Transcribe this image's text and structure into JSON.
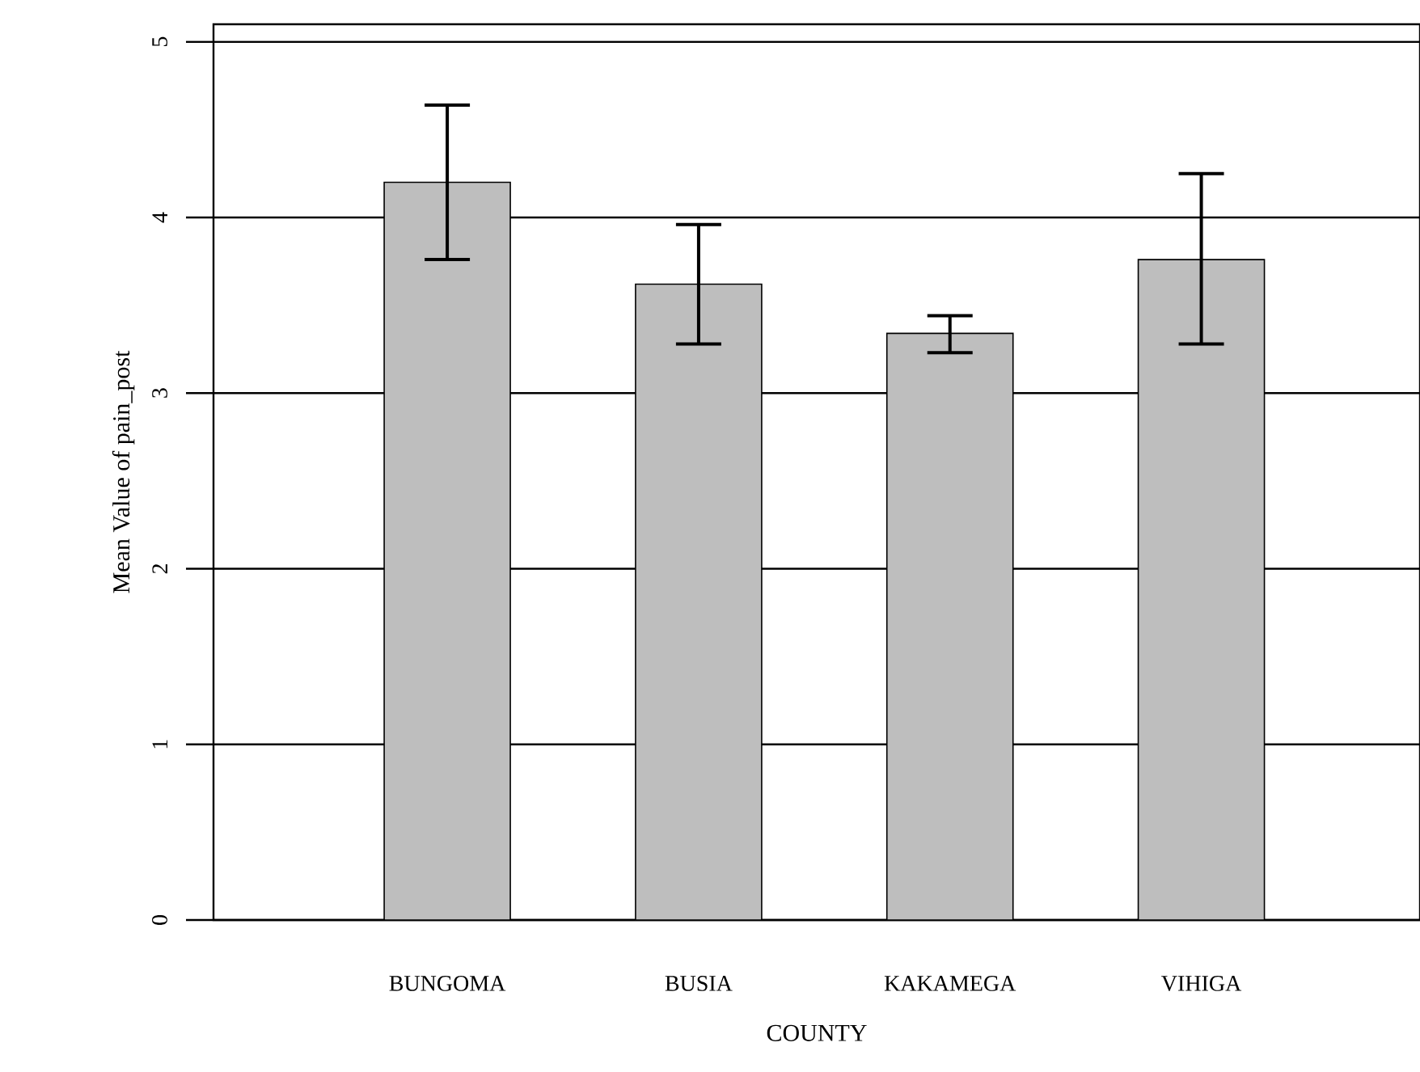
{
  "chart_data": {
    "type": "bar",
    "categories": [
      "BUNGOMA",
      "BUSIA",
      "KAKAMEGA",
      "VIHIGA"
    ],
    "values": [
      4.2,
      3.62,
      3.34,
      3.76
    ],
    "errors": [
      [
        3.76,
        4.64
      ],
      [
        3.28,
        3.96
      ],
      [
        3.23,
        3.44
      ],
      [
        3.28,
        4.25
      ]
    ],
    "color": "#bebebe",
    "xlabel": "COUNTY",
    "ylabel": "Mean Value of pain_post",
    "ylim": [
      0,
      5.1
    ],
    "yticks": [
      0,
      1,
      2,
      3,
      4,
      5
    ],
    "grid": "y"
  }
}
